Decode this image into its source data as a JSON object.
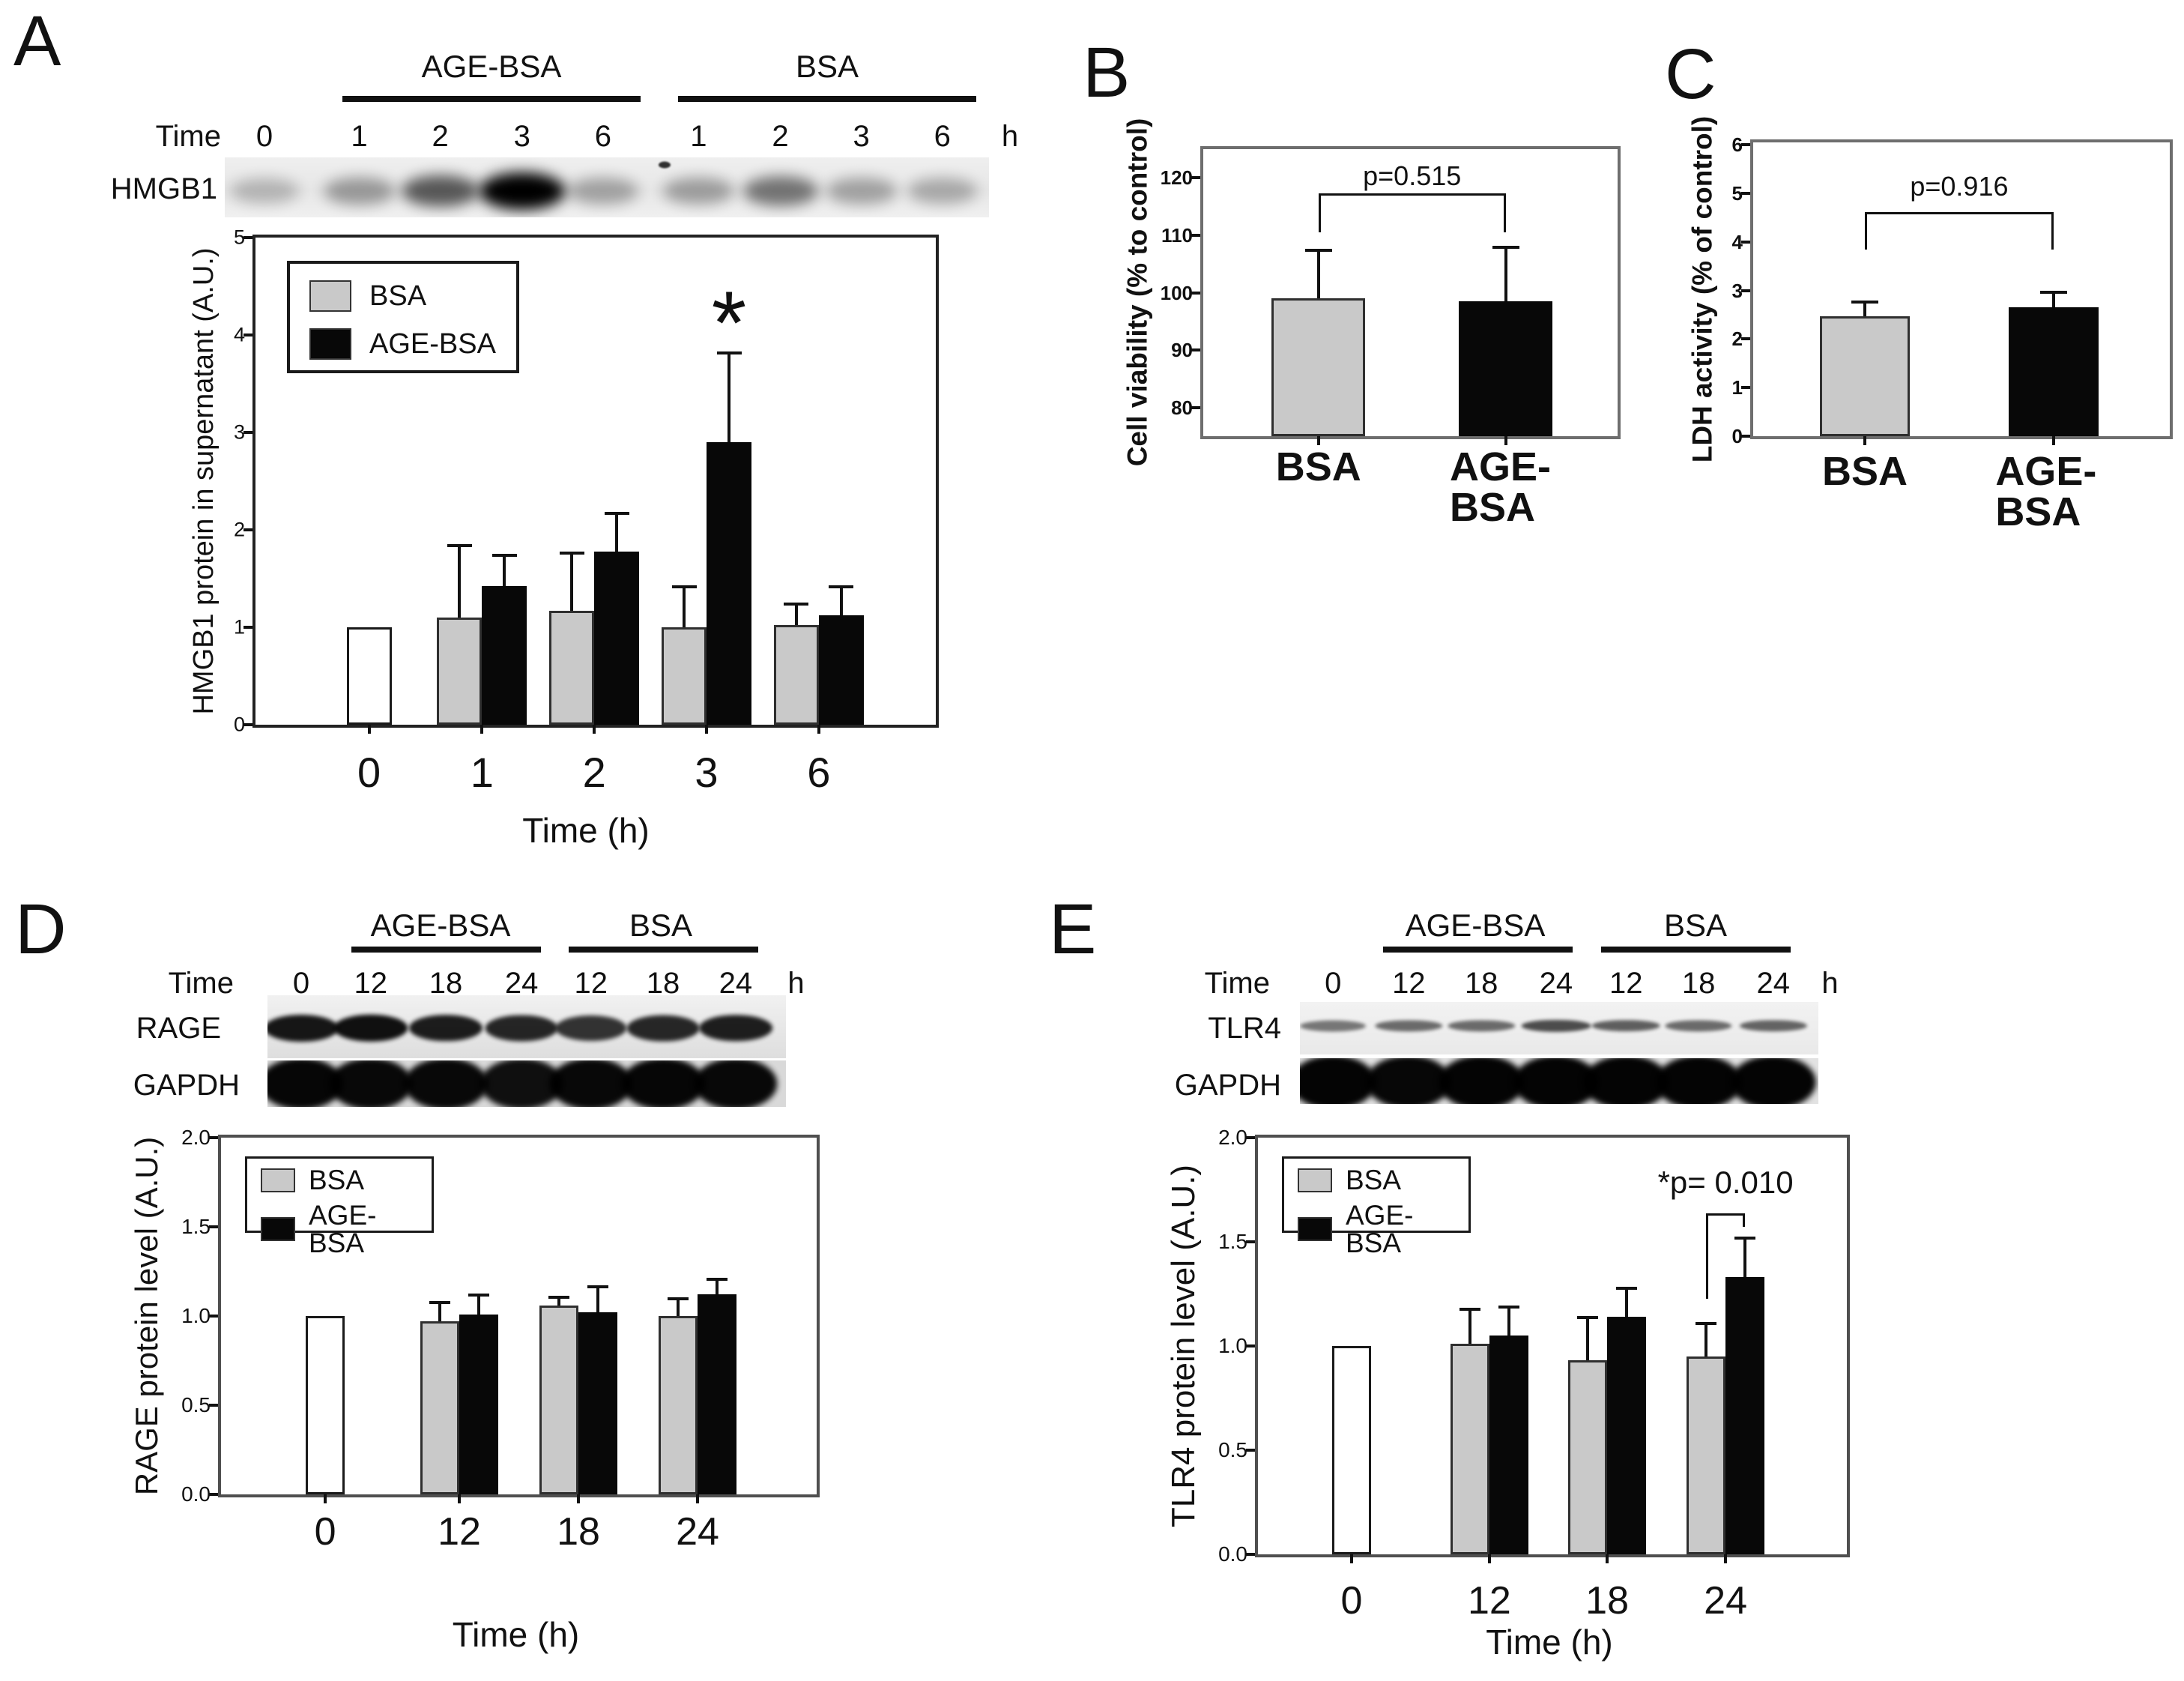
{
  "figure": {
    "background": "#ffffff"
  },
  "colors": {
    "bsa_bar": "#c9c9c9",
    "age_bsa_bar": "#080808",
    "control_bar": "#ffffff",
    "axis": "#111111"
  },
  "chart_data": [
    {
      "id": "A",
      "type": "bar",
      "ylabel": "HMGB1 protein in supernatant (A.U.)",
      "xlabel": "Time (h)",
      "ylim": [
        0,
        5
      ],
      "yticks": [
        0,
        1,
        2,
        3,
        4,
        5
      ],
      "ytick_labels": [
        "0",
        "1",
        "2",
        "3",
        "4",
        "5"
      ],
      "categories": [
        "0",
        "1",
        "2",
        "3",
        "6"
      ],
      "control": {
        "category": "0",
        "value": 1.0,
        "color": "#ffffff"
      },
      "series": [
        {
          "name": "BSA",
          "color": "#c9c9c9",
          "values": [
            null,
            1.1,
            1.17,
            1.0,
            1.02
          ],
          "errors": [
            null,
            0.75,
            0.6,
            0.42,
            0.23
          ]
        },
        {
          "name": "AGE-BSA",
          "color": "#080808",
          "values": [
            null,
            1.42,
            1.78,
            2.9,
            1.12
          ],
          "errors": [
            null,
            0.33,
            0.4,
            0.92,
            0.3
          ]
        }
      ],
      "legend": {
        "position": "top-left",
        "entries": [
          "BSA",
          "AGE-BSA"
        ]
      },
      "annotations": [
        {
          "type": "star",
          "text": "*",
          "category_index": 3,
          "series_index": 1,
          "y": 4.38
        }
      ]
    },
    {
      "id": "B",
      "type": "bar",
      "ylabel": "Cell viability (% to control)",
      "xlabel": "",
      "ylim": [
        75,
        125
      ],
      "yticks": [
        80,
        90,
        100,
        110,
        120
      ],
      "ytick_labels": [
        "80",
        "90",
        "100",
        "110",
        "120"
      ],
      "categories": [
        "BSA",
        "AGE-BSA"
      ],
      "values": [
        99,
        98.5
      ],
      "errors": [
        8.5,
        9.5
      ],
      "colors": [
        "#c9c9c9",
        "#080808"
      ],
      "comparison": {
        "text": "p=0.515",
        "top": 117.3,
        "left_bottom": 110.5,
        "right_bottom": 110.5,
        "text_top": 122.6
      }
    },
    {
      "id": "C",
      "type": "bar",
      "ylabel": "LDH activity (% of control)",
      "xlabel": "",
      "ylim": [
        0,
        6.05
      ],
      "yticks": [
        0,
        1,
        2,
        3,
        4,
        5,
        6
      ],
      "ytick_labels": [
        "0",
        "1",
        "2",
        "3",
        "4",
        "5",
        "6"
      ],
      "categories": [
        "BSA",
        "AGE-BSA"
      ],
      "values": [
        2.47,
        2.65
      ],
      "errors": [
        0.31,
        0.33
      ],
      "colors": [
        "#c9c9c9",
        "#080808"
      ],
      "comparison": {
        "text": "p=0.916",
        "top": 4.62,
        "left_bottom": 3.84,
        "right_bottom": 3.84,
        "text_top": 5.42
      }
    },
    {
      "id": "D",
      "type": "bar",
      "ylabel": "RAGE protein level (A.U.)",
      "xlabel": "Time (h)",
      "ylim": [
        0,
        2
      ],
      "yticks": [
        0,
        0.5,
        1,
        1.5,
        2
      ],
      "ytick_labels": [
        "0.0",
        "0.5",
        "1.0",
        "1.5",
        "2.0"
      ],
      "categories": [
        "0",
        "12",
        "18",
        "24"
      ],
      "control": {
        "category": "0",
        "value": 1.0,
        "color": "#ffffff"
      },
      "series": [
        {
          "name": "BSA",
          "color": "#c9c9c9",
          "values": [
            null,
            0.97,
            1.06,
            1.0
          ],
          "errors": [
            null,
            0.11,
            0.05,
            0.1
          ]
        },
        {
          "name": "AGE-BSA",
          "color": "#080808",
          "values": [
            null,
            1.01,
            1.02,
            1.12
          ],
          "errors": [
            null,
            0.11,
            0.15,
            0.09
          ]
        }
      ],
      "legend": {
        "position": "top-left",
        "entries": [
          "BSA",
          "AGE-BSA"
        ]
      }
    },
    {
      "id": "E",
      "type": "bar",
      "ylabel": "TLR4 protein level (A.U.)",
      "xlabel": "Time (h)",
      "ylim": [
        0,
        2
      ],
      "yticks": [
        0,
        0.5,
        1,
        1.5,
        2
      ],
      "ytick_labels": [
        "0.0",
        "0.5",
        "1.0",
        "1.5",
        "2.0"
      ],
      "categories": [
        "0",
        "12",
        "18",
        "24"
      ],
      "control": {
        "category": "0",
        "value": 1.0,
        "color": "#ffffff"
      },
      "series": [
        {
          "name": "BSA",
          "color": "#c9c9c9",
          "values": [
            null,
            1.01,
            0.93,
            0.95
          ],
          "errors": [
            null,
            0.17,
            0.21,
            0.16
          ]
        },
        {
          "name": "AGE-BSA",
          "color": "#080808",
          "values": [
            null,
            1.05,
            1.14,
            1.33
          ],
          "errors": [
            null,
            0.14,
            0.14,
            0.19
          ]
        }
      ],
      "legend": {
        "position": "top-left",
        "entries": [
          "BSA",
          "AGE-BSA"
        ]
      },
      "comparison": {
        "text": "*p= 0.010",
        "category_index": 3,
        "top": 1.637,
        "left_bottom": 1.228,
        "right_bottom": 1.573,
        "text_top": 1.86
      }
    }
  ],
  "panels": {
    "A": {
      "label": "A",
      "blot": {
        "group_headers": [
          "AGE-BSA",
          "BSA"
        ],
        "time_label": "Time",
        "lane_times": [
          "0",
          "1",
          "2",
          "3",
          "6",
          "1",
          "2",
          "3",
          "6"
        ],
        "unit": "h",
        "protein": "HMGB1",
        "band_intensities": [
          0.22,
          0.34,
          0.62,
          1.0,
          0.3,
          0.32,
          0.5,
          0.3,
          0.27
        ],
        "artifact_dot": true
      }
    },
    "B": {
      "label": "B"
    },
    "C": {
      "label": "C"
    },
    "D": {
      "label": "D",
      "blot": {
        "group_headers": [
          "AGE-BSA",
          "BSA"
        ],
        "time_label": "Time",
        "lane_times": [
          "0",
          "12",
          "18",
          "24",
          "12",
          "18",
          "24"
        ],
        "unit": "h",
        "blots": [
          {
            "protein": "RAGE",
            "band_intensities": [
              0.9,
              0.93,
              0.88,
              0.84,
              0.78,
              0.83,
              0.87
            ]
          },
          {
            "protein": "GAPDH",
            "band_intensities": [
              0.97,
              0.96,
              0.96,
              0.93,
              0.96,
              0.97,
              0.96
            ]
          }
        ]
      }
    },
    "E": {
      "label": "E",
      "blot": {
        "group_headers": [
          "AGE-BSA",
          "BSA"
        ],
        "time_label": "Time",
        "lane_times": [
          "0",
          "12",
          "18",
          "24",
          "12",
          "18",
          "24"
        ],
        "unit": "h",
        "blots": [
          {
            "protein": "TLR4",
            "band_intensities": [
              0.5,
              0.55,
              0.55,
              0.68,
              0.6,
              0.55,
              0.58
            ]
          },
          {
            "protein": "GAPDH",
            "band_intensities": [
              0.98,
              0.97,
              0.98,
              0.98,
              0.98,
              0.98,
              0.98
            ]
          }
        ]
      }
    }
  }
}
